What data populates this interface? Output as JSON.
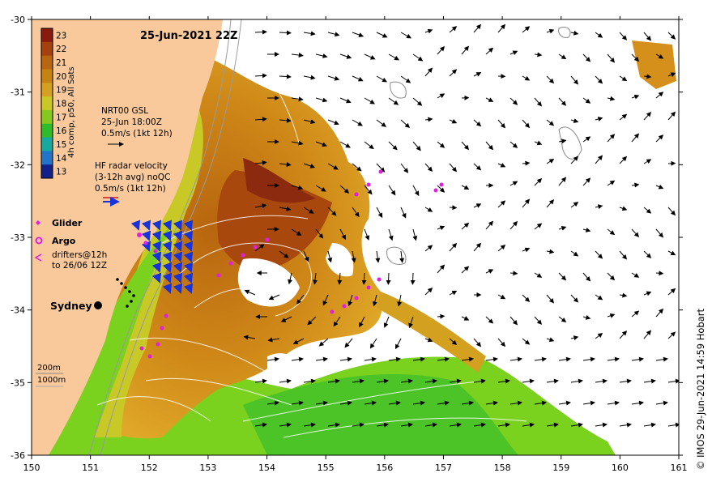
{
  "title": "25-Jun-2021 22Z",
  "colorbar": {
    "label": "4h comp, p50, All Sats",
    "ticks": [
      23,
      22,
      21,
      20,
      19,
      18,
      17,
      16,
      15,
      14,
      13
    ],
    "colors": [
      "#8b1a0e",
      "#a5400f",
      "#b8660f",
      "#c78312",
      "#d4a020",
      "#c8c826",
      "#86c81e",
      "#2fbb2a",
      "#16a9a0",
      "#2374c8",
      "#14208a"
    ]
  },
  "legend": {
    "gsl": [
      "NRT00 GSL",
      "25-Jun 18:00Z",
      "0.5m/s (1kt 12h)"
    ],
    "hf": [
      "HF radar velocity",
      "(3-12h avg) noQC",
      "0.5m/s (1kt 12h)"
    ],
    "glider": "Glider",
    "argo": "Argo",
    "drifters": [
      "drifters@12h",
      "to 26/06 12Z"
    ],
    "depth": [
      "200m",
      "1000m"
    ]
  },
  "place": "Sydney",
  "credit": "© IMOS 29-Jun-2021 14:59 Hobart",
  "axes": {
    "x_ticks": [
      "150",
      "151",
      "152",
      "153",
      "154",
      "155",
      "156",
      "157",
      "158",
      "159",
      "160",
      "161"
    ],
    "y_ticks": [
      "-30",
      "-31",
      "-32",
      "-33",
      "-34",
      "-35",
      "-36"
    ],
    "lon_range": [
      150,
      161
    ],
    "lat_range": [
      -36,
      -30
    ]
  },
  "colors": {
    "land": "#f9c99c",
    "ocean_nodata": "#ffffff",
    "warm_core": "#c8790f",
    "shelf_green": "#7ad11e",
    "argo": "#e020e0",
    "hf_blue": "#1833d8"
  }
}
